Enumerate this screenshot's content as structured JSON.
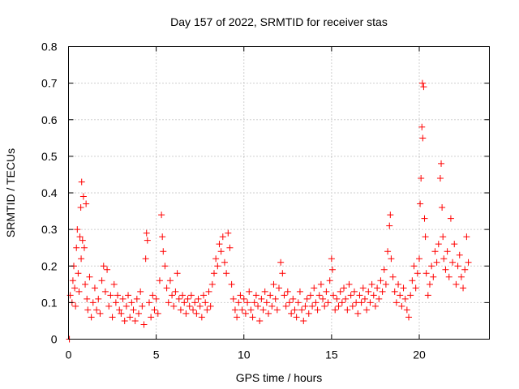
{
  "chart_data": {
    "type": "scatter",
    "title": "Day 157 of 2022, SRMTID for receiver stas",
    "xlabel": "GPS time / hours",
    "ylabel": "SRMTID / TECUs",
    "xlim": [
      0,
      24
    ],
    "ylim": [
      0,
      0.8
    ],
    "xticks": [
      0,
      5,
      10,
      15,
      20
    ],
    "xtick_labels": [
      "0",
      "5",
      "10",
      "15",
      "20"
    ],
    "yticks": [
      0,
      0.1,
      0.2,
      0.3,
      0.4,
      0.5,
      0.6,
      0.7,
      0.8
    ],
    "ytick_labels": [
      "0",
      "0.1",
      "0.2",
      "0.3",
      "0.4",
      "0.5",
      "0.6",
      "0.7",
      "0.8"
    ],
    "grid": true,
    "marker": "+",
    "color": "#ff0000",
    "series": [
      {
        "name": "stas",
        "points": [
          [
            0.05,
            0.0
          ],
          [
            0.1,
            0.12
          ],
          [
            0.2,
            0.1
          ],
          [
            0.25,
            0.16
          ],
          [
            0.3,
            0.2
          ],
          [
            0.35,
            0.14
          ],
          [
            0.4,
            0.09
          ],
          [
            0.45,
            0.25
          ],
          [
            0.5,
            0.3
          ],
          [
            0.55,
            0.18
          ],
          [
            0.6,
            0.13
          ],
          [
            0.65,
            0.28
          ],
          [
            0.7,
            0.36
          ],
          [
            0.72,
            0.22
          ],
          [
            0.75,
            0.43
          ],
          [
            0.8,
            0.27
          ],
          [
            0.85,
            0.39
          ],
          [
            0.9,
            0.25
          ],
          [
            0.95,
            0.15
          ],
          [
            1.0,
            0.37
          ],
          [
            1.05,
            0.11
          ],
          [
            1.1,
            0.08
          ],
          [
            1.2,
            0.17
          ],
          [
            1.3,
            0.06
          ],
          [
            1.4,
            0.1
          ],
          [
            1.5,
            0.14
          ],
          [
            1.6,
            0.08
          ],
          [
            1.7,
            0.11
          ],
          [
            1.8,
            0.07
          ],
          [
            1.9,
            0.16
          ],
          [
            2.0,
            0.2
          ],
          [
            2.1,
            0.13
          ],
          [
            2.2,
            0.19
          ],
          [
            2.3,
            0.09
          ],
          [
            2.4,
            0.12
          ],
          [
            2.5,
            0.06
          ],
          [
            2.6,
            0.15
          ],
          [
            2.7,
            0.1
          ],
          [
            2.8,
            0.12
          ],
          [
            2.9,
            0.08
          ],
          [
            3.0,
            0.07
          ],
          [
            3.1,
            0.11
          ],
          [
            3.2,
            0.05
          ],
          [
            3.3,
            0.09
          ],
          [
            3.4,
            0.12
          ],
          [
            3.5,
            0.06
          ],
          [
            3.6,
            0.1
          ],
          [
            3.7,
            0.08
          ],
          [
            3.8,
            0.05
          ],
          [
            3.9,
            0.11
          ],
          [
            4.0,
            0.07
          ],
          [
            4.1,
            0.13
          ],
          [
            4.2,
            0.09
          ],
          [
            4.3,
            0.04
          ],
          [
            4.4,
            0.22
          ],
          [
            4.45,
            0.29
          ],
          [
            4.5,
            0.27
          ],
          [
            4.6,
            0.1
          ],
          [
            4.7,
            0.06
          ],
          [
            4.8,
            0.12
          ],
          [
            4.9,
            0.08
          ],
          [
            5.0,
            0.11
          ],
          [
            5.1,
            0.07
          ],
          [
            5.2,
            0.16
          ],
          [
            5.3,
            0.34
          ],
          [
            5.35,
            0.28
          ],
          [
            5.4,
            0.24
          ],
          [
            5.5,
            0.2
          ],
          [
            5.6,
            0.14
          ],
          [
            5.7,
            0.1
          ],
          [
            5.8,
            0.16
          ],
          [
            5.9,
            0.12
          ],
          [
            6.0,
            0.09
          ],
          [
            6.1,
            0.13
          ],
          [
            6.2,
            0.18
          ],
          [
            6.3,
            0.11
          ],
          [
            6.4,
            0.08
          ],
          [
            6.5,
            0.12
          ],
          [
            6.6,
            0.1
          ],
          [
            6.7,
            0.07
          ],
          [
            6.8,
            0.11
          ],
          [
            6.9,
            0.09
          ],
          [
            7.0,
            0.12
          ],
          [
            7.1,
            0.08
          ],
          [
            7.2,
            0.1
          ],
          [
            7.3,
            0.07
          ],
          [
            7.4,
            0.11
          ],
          [
            7.5,
            0.09
          ],
          [
            7.6,
            0.06
          ],
          [
            7.7,
            0.12
          ],
          [
            7.8,
            0.1
          ],
          [
            7.9,
            0.08
          ],
          [
            8.0,
            0.13
          ],
          [
            8.1,
            0.09
          ],
          [
            8.2,
            0.15
          ],
          [
            8.3,
            0.18
          ],
          [
            8.4,
            0.22
          ],
          [
            8.5,
            0.2
          ],
          [
            8.6,
            0.26
          ],
          [
            8.7,
            0.24
          ],
          [
            8.8,
            0.28
          ],
          [
            8.9,
            0.21
          ],
          [
            9.0,
            0.18
          ],
          [
            9.1,
            0.29
          ],
          [
            9.2,
            0.25
          ],
          [
            9.3,
            0.15
          ],
          [
            9.4,
            0.11
          ],
          [
            9.5,
            0.08
          ],
          [
            9.6,
            0.06
          ],
          [
            9.7,
            0.1
          ],
          [
            9.8,
            0.12
          ],
          [
            9.9,
            0.08
          ],
          [
            10.0,
            0.11
          ],
          [
            10.1,
            0.07
          ],
          [
            10.2,
            0.1
          ],
          [
            10.3,
            0.13
          ],
          [
            10.4,
            0.08
          ],
          [
            10.5,
            0.06
          ],
          [
            10.6,
            0.1
          ],
          [
            10.7,
            0.12
          ],
          [
            10.8,
            0.09
          ],
          [
            10.9,
            0.05
          ],
          [
            11.0,
            0.11
          ],
          [
            11.1,
            0.08
          ],
          [
            11.2,
            0.13
          ],
          [
            11.3,
            0.1
          ],
          [
            11.4,
            0.07
          ],
          [
            11.5,
            0.12
          ],
          [
            11.6,
            0.09
          ],
          [
            11.7,
            0.15
          ],
          [
            11.8,
            0.11
          ],
          [
            11.9,
            0.08
          ],
          [
            12.0,
            0.14
          ],
          [
            12.1,
            0.21
          ],
          [
            12.2,
            0.18
          ],
          [
            12.3,
            0.12
          ],
          [
            12.4,
            0.09
          ],
          [
            12.5,
            0.13
          ],
          [
            12.6,
            0.1
          ],
          [
            12.7,
            0.07
          ],
          [
            12.8,
            0.11
          ],
          [
            12.9,
            0.08
          ],
          [
            13.0,
            0.06
          ],
          [
            13.1,
            0.1
          ],
          [
            13.2,
            0.13
          ],
          [
            13.3,
            0.08
          ],
          [
            13.4,
            0.05
          ],
          [
            13.5,
            0.09
          ],
          [
            13.6,
            0.11
          ],
          [
            13.7,
            0.07
          ],
          [
            13.8,
            0.12
          ],
          [
            13.9,
            0.09
          ],
          [
            14.0,
            0.14
          ],
          [
            14.1,
            0.1
          ],
          [
            14.2,
            0.08
          ],
          [
            14.3,
            0.12
          ],
          [
            14.4,
            0.15
          ],
          [
            14.5,
            0.11
          ],
          [
            14.6,
            0.09
          ],
          [
            14.7,
            0.13
          ],
          [
            14.8,
            0.1
          ],
          [
            14.9,
            0.16
          ],
          [
            15.0,
            0.22
          ],
          [
            15.05,
            0.19
          ],
          [
            15.1,
            0.12
          ],
          [
            15.2,
            0.08
          ],
          [
            15.3,
            0.11
          ],
          [
            15.4,
            0.09
          ],
          [
            15.5,
            0.13
          ],
          [
            15.6,
            0.1
          ],
          [
            15.7,
            0.14
          ],
          [
            15.8,
            0.11
          ],
          [
            15.9,
            0.08
          ],
          [
            16.0,
            0.15
          ],
          [
            16.1,
            0.12
          ],
          [
            16.2,
            0.09
          ],
          [
            16.3,
            0.13
          ],
          [
            16.4,
            0.1
          ],
          [
            16.5,
            0.07
          ],
          [
            16.6,
            0.12
          ],
          [
            16.7,
            0.1
          ],
          [
            16.8,
            0.14
          ],
          [
            16.9,
            0.11
          ],
          [
            17.0,
            0.08
          ],
          [
            17.1,
            0.13
          ],
          [
            17.2,
            0.1
          ],
          [
            17.3,
            0.15
          ],
          [
            17.4,
            0.12
          ],
          [
            17.5,
            0.09
          ],
          [
            17.6,
            0.14
          ],
          [
            17.7,
            0.11
          ],
          [
            17.8,
            0.16
          ],
          [
            17.9,
            0.13
          ],
          [
            18.0,
            0.19
          ],
          [
            18.1,
            0.15
          ],
          [
            18.2,
            0.24
          ],
          [
            18.3,
            0.31
          ],
          [
            18.35,
            0.34
          ],
          [
            18.4,
            0.22
          ],
          [
            18.5,
            0.17
          ],
          [
            18.6,
            0.13
          ],
          [
            18.7,
            0.1
          ],
          [
            18.8,
            0.15
          ],
          [
            18.9,
            0.12
          ],
          [
            19.0,
            0.09
          ],
          [
            19.1,
            0.14
          ],
          [
            19.2,
            0.11
          ],
          [
            19.3,
            0.08
          ],
          [
            19.4,
            0.06
          ],
          [
            19.5,
            0.12
          ],
          [
            19.6,
            0.16
          ],
          [
            19.7,
            0.2
          ],
          [
            19.8,
            0.14
          ],
          [
            19.9,
            0.18
          ],
          [
            20.0,
            0.22
          ],
          [
            20.05,
            0.37
          ],
          [
            20.1,
            0.44
          ],
          [
            20.15,
            0.58
          ],
          [
            20.18,
            0.7
          ],
          [
            20.2,
            0.55
          ],
          [
            20.25,
            0.69
          ],
          [
            20.3,
            0.33
          ],
          [
            20.35,
            0.28
          ],
          [
            20.4,
            0.18
          ],
          [
            20.5,
            0.12
          ],
          [
            20.6,
            0.15
          ],
          [
            20.7,
            0.2
          ],
          [
            20.8,
            0.17
          ],
          [
            20.9,
            0.24
          ],
          [
            21.0,
            0.21
          ],
          [
            21.1,
            0.26
          ],
          [
            21.2,
            0.44
          ],
          [
            21.25,
            0.48
          ],
          [
            21.3,
            0.36
          ],
          [
            21.35,
            0.28
          ],
          [
            21.4,
            0.22
          ],
          [
            21.5,
            0.19
          ],
          [
            21.6,
            0.24
          ],
          [
            21.7,
            0.17
          ],
          [
            21.8,
            0.33
          ],
          [
            21.9,
            0.21
          ],
          [
            22.0,
            0.26
          ],
          [
            22.1,
            0.15
          ],
          [
            22.2,
            0.2
          ],
          [
            22.3,
            0.23
          ],
          [
            22.4,
            0.17
          ],
          [
            22.5,
            0.14
          ],
          [
            22.6,
            0.19
          ],
          [
            22.7,
            0.28
          ],
          [
            22.8,
            0.21
          ]
        ]
      }
    ]
  }
}
